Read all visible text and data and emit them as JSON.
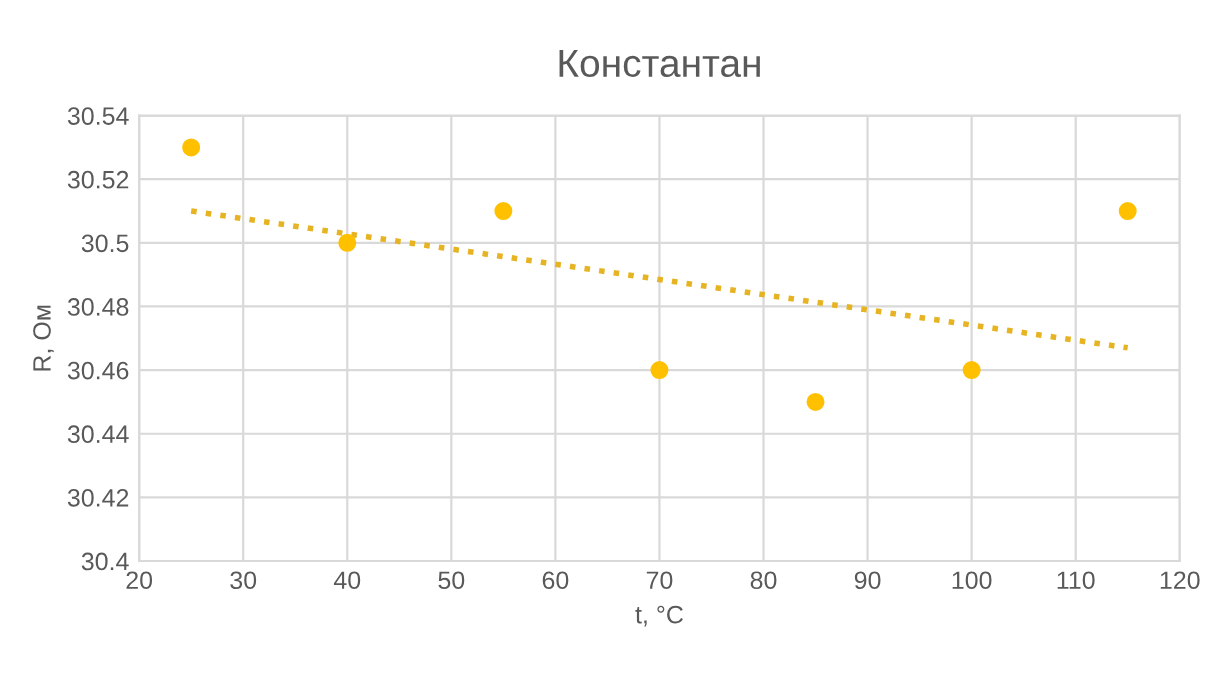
{
  "chart_data": {
    "type": "scatter",
    "title": "Константан",
    "xlabel": "t, °C",
    "ylabel": "R, Ом",
    "series": [
      {
        "color": "#ffc000",
        "marker": "circle",
        "x": [
          25,
          40,
          55,
          70,
          85,
          100,
          115
        ],
        "values": [
          30.53,
          30.5,
          30.51,
          30.46,
          30.45,
          30.46,
          30.51
        ]
      },
      {
        "type": "line",
        "color": "#e6b422",
        "marker": "none",
        "line_style": "dotted",
        "x": [
          25,
          115
        ],
        "values": [
          30.51,
          30.467
        ]
      }
    ],
    "xlim": [
      20,
      120
    ],
    "xticks": [
      20,
      30,
      40,
      50,
      60,
      70,
      80,
      90,
      100,
      110,
      120
    ],
    "ylim": [
      30.4,
      30.54
    ],
    "yticks": [
      30.4,
      30.42,
      30.44,
      30.46,
      30.48,
      30.5,
      30.52,
      30.54
    ],
    "grid": true,
    "legend": false
  }
}
